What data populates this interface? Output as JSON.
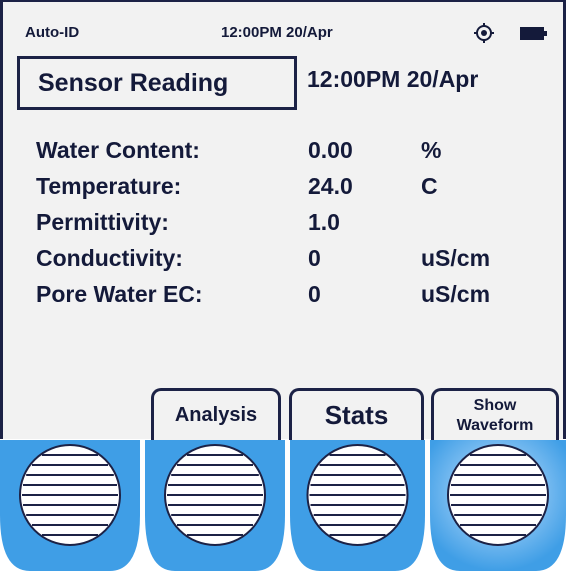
{
  "status_bar": {
    "mode": "Auto-ID",
    "datetime": "12:00PM 20/Apr"
  },
  "header": {
    "title": "Sensor Reading",
    "datetime": "12:00PM 20/Apr"
  },
  "readings": [
    {
      "label": "Water Content:",
      "value": "0.00",
      "unit": "%"
    },
    {
      "label": "Temperature:",
      "value": "24.0",
      "unit": "C"
    },
    {
      "label": "Permittivity:",
      "value": "1.0"
    },
    {
      "label": "Conductivity:",
      "value": "0",
      "unit": "uS/cm"
    },
    {
      "label": "Pore Water EC:",
      "value": "0",
      "unit": "uS/cm"
    }
  ],
  "buttons": [
    "Analysis",
    "Stats",
    "Show Waveform"
  ]
}
